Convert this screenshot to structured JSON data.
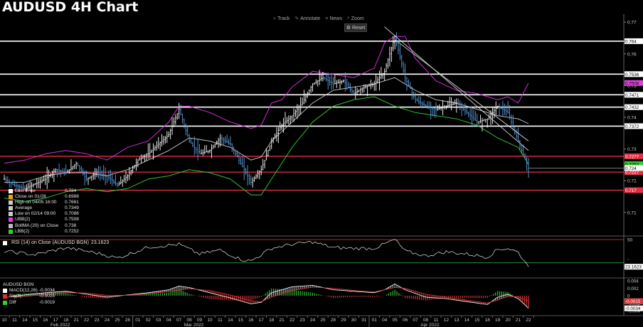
{
  "title": "AUDUSD 4H Chart",
  "toolbar": [
    {
      "icon": "crosshair-icon",
      "glyph": "+",
      "label": "Track"
    },
    {
      "icon": "pencil-icon",
      "glyph": "✎",
      "label": "Annotate"
    },
    {
      "icon": "news-icon",
      "glyph": "≡",
      "label": "News"
    },
    {
      "icon": "zoom-icon",
      "glyph": "⌕",
      "label": "Zoom"
    }
  ],
  "reset_label": "Reset",
  "legend": [
    {
      "label": "Last Price",
      "value": "0.724",
      "color": "#ffffff"
    },
    {
      "label": "Close on 01/28",
      "value": "0.6988",
      "color": "#f0a020"
    },
    {
      "label": "High on 04/05 16:00",
      "value": "0.7661",
      "color": "#cccccc"
    },
    {
      "label": "Average",
      "value": "0.7349",
      "color": "#cccccc"
    },
    {
      "label": "Low on 02/14 09:00",
      "value": "0.7086",
      "color": "#cccccc"
    },
    {
      "label": "UBB(2)",
      "value": "0.7508",
      "color": "#e040e0"
    },
    {
      "label": "BollMA (20)  on Close",
      "value": "0.738",
      "color": "#bbbbbb"
    },
    {
      "label": "LBB(2)",
      "value": "0.7252",
      "color": "#30d030"
    }
  ],
  "rsi_legend": {
    "label": "RSI (14)  on Close (AUDUSD BGN)",
    "value": "23.1623"
  },
  "macd_legend": {
    "title": "AUDUSD BGN",
    "rows": [
      {
        "label": "MACD(12,26)",
        "value": "-0.0034",
        "color": "#ffffff"
      },
      {
        "label": "Sig(9)",
        "value": "-0.0015",
        "color": "#e03030"
      },
      {
        "label": "Diff",
        "value": "-0.0019",
        "color": "#30d030"
      }
    ]
  },
  "chart_data": {
    "type": "line",
    "price_axis": {
      "ylim": [
        0.703,
        0.7725
      ],
      "ticks": [
        "0.77",
        "0.76",
        "0.75",
        "0.74",
        "0.73",
        "0.72",
        "0.71"
      ]
    },
    "horizontal_levels": [
      {
        "value": 0.764,
        "label": "0.764",
        "color": "#ffffff"
      },
      {
        "value": 0.7536,
        "label": "0.7536",
        "color": "#ffffff"
      },
      {
        "value": 0.7471,
        "label": "0.7471",
        "color": "#ffffff"
      },
      {
        "value": 0.7432,
        "label": "0.7432",
        "color": "#ffffff"
      },
      {
        "value": 0.7372,
        "label": "0.7372",
        "color": "#ffffff"
      },
      {
        "value": 0.7277,
        "label": "0.7277",
        "color": "#e03040"
      },
      {
        "value": 0.7227,
        "label": "0.7227",
        "color": "#e03040"
      },
      {
        "value": 0.717,
        "label": "0.717",
        "color": "#e03040"
      }
    ],
    "price_tags": [
      {
        "value": 0.7508,
        "label": "0.7508",
        "color": "#e040e0"
      },
      {
        "value": 0.7252,
        "label": "0.7252",
        "color": "#30d030"
      },
      {
        "value": 0.724,
        "label": "0.724",
        "color": "#ffffff"
      }
    ],
    "rsi_axis": {
      "ylim": [
        5,
        75
      ],
      "ticks": [
        "50",
        "-"
      ]
    },
    "rsi_levels": [
      70,
      30
    ],
    "rsi_tag": "23.1623",
    "macd_axis": {
      "ylim": [
        -0.0052,
        0.0046
      ],
      "ticks": [
        "0.004",
        "0.002",
        "0",
        "-0.002",
        "-0.004"
      ]
    },
    "macd_tags": [
      {
        "value": -0.0015,
        "label": "-0.0015",
        "color": "#e03030"
      },
      {
        "value": -0.0034,
        "label": "-0.0034",
        "color": "#ffffff"
      }
    ],
    "x_labels": [
      "10",
      "11",
      "14",
      "15",
      "16",
      "17",
      "18",
      "21",
      "22",
      "23",
      "24",
      "25",
      "28",
      "01",
      "02",
      "03",
      "04",
      "07",
      "08",
      "09",
      "10",
      "11",
      "14",
      "15",
      "16",
      "17",
      "18",
      "21",
      "22",
      "23",
      "24",
      "25",
      "28",
      "29",
      "30",
      "31",
      "01",
      "04",
      "05",
      "06",
      "07",
      "08",
      "11",
      "12",
      "13",
      "14",
      "15",
      "18",
      "19",
      "20",
      "21",
      "22"
    ],
    "month_labels": [
      {
        "label": "Feb 2022",
        "after_index": 0
      },
      {
        "label": "Mar 2022",
        "after_index": 13
      },
      {
        "label": "Apr 2022",
        "after_index": 36
      }
    ],
    "price_path": [
      [
        0,
        0.7205
      ],
      [
        1,
        0.7185
      ],
      [
        2,
        0.7175
      ],
      [
        3,
        0.719
      ],
      [
        4,
        0.7205
      ],
      [
        5,
        0.7235
      ],
      [
        6,
        0.7225
      ],
      [
        7,
        0.7255
      ],
      [
        8,
        0.7205
      ],
      [
        9,
        0.7225
      ],
      [
        10,
        0.7215
      ],
      [
        11,
        0.7185
      ],
      [
        12,
        0.7215
      ],
      [
        13,
        0.7265
      ],
      [
        14,
        0.7285
      ],
      [
        15,
        0.7315
      ],
      [
        16,
        0.7345
      ],
      [
        17,
        0.7425
      ],
      [
        18,
        0.7325
      ],
      [
        19,
        0.7285
      ],
      [
        20,
        0.7295
      ],
      [
        21,
        0.7335
      ],
      [
        22,
        0.7315
      ],
      [
        23,
        0.7255
      ],
      [
        24,
        0.7195
      ],
      [
        25,
        0.7235
      ],
      [
        26,
        0.7325
      ],
      [
        27,
        0.7375
      ],
      [
        28,
        0.7405
      ],
      [
        29,
        0.7445
      ],
      [
        30,
        0.7505
      ],
      [
        31,
        0.7525
      ],
      [
        32,
        0.7505
      ],
      [
        33,
        0.7515
      ],
      [
        34,
        0.7475
      ],
      [
        35,
        0.7495
      ],
      [
        36,
        0.7505
      ],
      [
        37,
        0.7545
      ],
      [
        38,
        0.7655
      ],
      [
        39,
        0.7525
      ],
      [
        40,
        0.7455
      ],
      [
        41,
        0.7435
      ],
      [
        42,
        0.7425
      ],
      [
        43,
        0.7435
      ],
      [
        44,
        0.7445
      ],
      [
        45,
        0.7415
      ],
      [
        46,
        0.7385
      ],
      [
        47,
        0.7395
      ],
      [
        48,
        0.7435
      ],
      [
        49,
        0.7415
      ],
      [
        50,
        0.7325
      ],
      [
        51,
        0.724
      ]
    ],
    "ubb_path": [
      [
        0,
        0.7255
      ],
      [
        2,
        0.7265
      ],
      [
        4,
        0.7285
      ],
      [
        6,
        0.7295
      ],
      [
        8,
        0.7285
      ],
      [
        10,
        0.7265
      ],
      [
        12,
        0.7305
      ],
      [
        14,
        0.7325
      ],
      [
        16,
        0.7385
      ],
      [
        17,
        0.7435
      ],
      [
        18,
        0.7435
      ],
      [
        20,
        0.7415
      ],
      [
        22,
        0.7385
      ],
      [
        24,
        0.7365
      ],
      [
        25,
        0.7375
      ],
      [
        26,
        0.7445
      ],
      [
        27,
        0.7455
      ],
      [
        28,
        0.7495
      ],
      [
        30,
        0.7545
      ],
      [
        32,
        0.7535
      ],
      [
        34,
        0.7525
      ],
      [
        36,
        0.7555
      ],
      [
        37,
        0.7635
      ],
      [
        38,
        0.7655
      ],
      [
        39,
        0.7655
      ],
      [
        40,
        0.7585
      ],
      [
        42,
        0.7515
      ],
      [
        44,
        0.7485
      ],
      [
        46,
        0.7475
      ],
      [
        48,
        0.7455
      ],
      [
        49,
        0.7465
      ],
      [
        50,
        0.7445
      ],
      [
        51,
        0.7508
      ]
    ],
    "ma_path": [
      [
        0,
        0.7195
      ],
      [
        2,
        0.7195
      ],
      [
        4,
        0.7215
      ],
      [
        6,
        0.7225
      ],
      [
        8,
        0.7225
      ],
      [
        10,
        0.7215
      ],
      [
        12,
        0.7235
      ],
      [
        14,
        0.7265
      ],
      [
        16,
        0.7295
      ],
      [
        18,
        0.7335
      ],
      [
        20,
        0.7325
      ],
      [
        22,
        0.7305
      ],
      [
        24,
        0.7265
      ],
      [
        25,
        0.7275
      ],
      [
        26,
        0.7325
      ],
      [
        28,
        0.7385
      ],
      [
        30,
        0.7445
      ],
      [
        32,
        0.7485
      ],
      [
        34,
        0.7495
      ],
      [
        36,
        0.7505
      ],
      [
        38,
        0.7525
      ],
      [
        40,
        0.7485
      ],
      [
        42,
        0.7455
      ],
      [
        44,
        0.7445
      ],
      [
        46,
        0.7425
      ],
      [
        48,
        0.7405
      ],
      [
        50,
        0.7395
      ],
      [
        51,
        0.738
      ]
    ],
    "lbb_path": [
      [
        0,
        0.7145
      ],
      [
        2,
        0.7135
      ],
      [
        4,
        0.7145
      ],
      [
        6,
        0.7165
      ],
      [
        8,
        0.7175
      ],
      [
        10,
        0.7165
      ],
      [
        12,
        0.7175
      ],
      [
        14,
        0.7205
      ],
      [
        16,
        0.7215
      ],
      [
        18,
        0.7235
      ],
      [
        20,
        0.7225
      ],
      [
        22,
        0.7205
      ],
      [
        24,
        0.7155
      ],
      [
        25,
        0.7155
      ],
      [
        26,
        0.7205
      ],
      [
        28,
        0.7305
      ],
      [
        30,
        0.7385
      ],
      [
        32,
        0.7435
      ],
      [
        34,
        0.7455
      ],
      [
        36,
        0.7465
      ],
      [
        38,
        0.7435
      ],
      [
        40,
        0.7415
      ],
      [
        42,
        0.7405
      ],
      [
        44,
        0.7395
      ],
      [
        46,
        0.7375
      ],
      [
        48,
        0.7335
      ],
      [
        50,
        0.7305
      ],
      [
        51,
        0.7252
      ]
    ],
    "trendlines": [
      {
        "from": [
          37,
          0.7685
        ],
        "to": [
          51,
          0.7295
        ]
      },
      {
        "from": [
          38,
          0.7645
        ],
        "to": [
          51,
          0.7325
        ]
      }
    ],
    "rsi_path": [
      [
        0,
        50
      ],
      [
        3,
        44
      ],
      [
        6,
        56
      ],
      [
        9,
        47
      ],
      [
        11,
        38
      ],
      [
        14,
        57
      ],
      [
        17,
        62
      ],
      [
        19,
        45
      ],
      [
        21,
        52
      ],
      [
        23,
        36
      ],
      [
        24,
        33
      ],
      [
        26,
        55
      ],
      [
        28,
        62
      ],
      [
        30,
        66
      ],
      [
        32,
        56
      ],
      [
        34,
        55
      ],
      [
        36,
        55
      ],
      [
        38,
        70
      ],
      [
        39,
        50
      ],
      [
        41,
        42
      ],
      [
        43,
        49
      ],
      [
        45,
        45
      ],
      [
        47,
        40
      ],
      [
        48,
        53
      ],
      [
        49,
        55
      ],
      [
        50,
        48
      ],
      [
        51,
        23.2
      ]
    ],
    "macd_path": [
      [
        0,
        -0.0005
      ],
      [
        2,
        0.0002
      ],
      [
        4,
        0.0008
      ],
      [
        6,
        0.0012
      ],
      [
        8,
        0.0004
      ],
      [
        10,
        -0.0004
      ],
      [
        12,
        0.0002
      ],
      [
        14,
        0.0008
      ],
      [
        16,
        0.0016
      ],
      [
        17,
        0.0026
      ],
      [
        18,
        0.0022
      ],
      [
        20,
        0.0008
      ],
      [
        22,
        -0.0006
      ],
      [
        24,
        -0.0022
      ],
      [
        25,
        -0.0018
      ],
      [
        26,
        0.0008
      ],
      [
        28,
        0.0024
      ],
      [
        30,
        0.0028
      ],
      [
        32,
        0.0016
      ],
      [
        34,
        0.0012
      ],
      [
        36,
        0.0008
      ],
      [
        37,
        0.0016
      ],
      [
        38,
        0.0032
      ],
      [
        39,
        0.0016
      ],
      [
        41,
        -0.0004
      ],
      [
        43,
        -0.0008
      ],
      [
        45,
        -0.0016
      ],
      [
        47,
        -0.0024
      ],
      [
        48,
        -0.0004
      ],
      [
        49,
        0.0004
      ],
      [
        50,
        -0.0008
      ],
      [
        51,
        -0.0034
      ]
    ],
    "signal_path": [
      [
        0,
        -0.0004
      ],
      [
        2,
        -0.0002
      ],
      [
        4,
        0.0003
      ],
      [
        6,
        0.0008
      ],
      [
        8,
        0.0007
      ],
      [
        10,
        0.0001
      ],
      [
        12,
        0.0001
      ],
      [
        14,
        0.0005
      ],
      [
        16,
        0.0011
      ],
      [
        18,
        0.0019
      ],
      [
        20,
        0.0014
      ],
      [
        22,
        0.0002
      ],
      [
        24,
        -0.0014
      ],
      [
        25,
        -0.0016
      ],
      [
        26,
        -0.0004
      ],
      [
        28,
        0.0014
      ],
      [
        30,
        0.0023
      ],
      [
        32,
        0.002
      ],
      [
        34,
        0.0014
      ],
      [
        36,
        0.001
      ],
      [
        38,
        0.0022
      ],
      [
        39,
        0.002
      ],
      [
        41,
        0.0004
      ],
      [
        43,
        -0.0004
      ],
      [
        45,
        -0.0012
      ],
      [
        47,
        -0.002
      ],
      [
        48,
        -0.0012
      ],
      [
        49,
        -0.0002
      ],
      [
        50,
        -0.0003
      ],
      [
        51,
        -0.0015
      ]
    ]
  }
}
